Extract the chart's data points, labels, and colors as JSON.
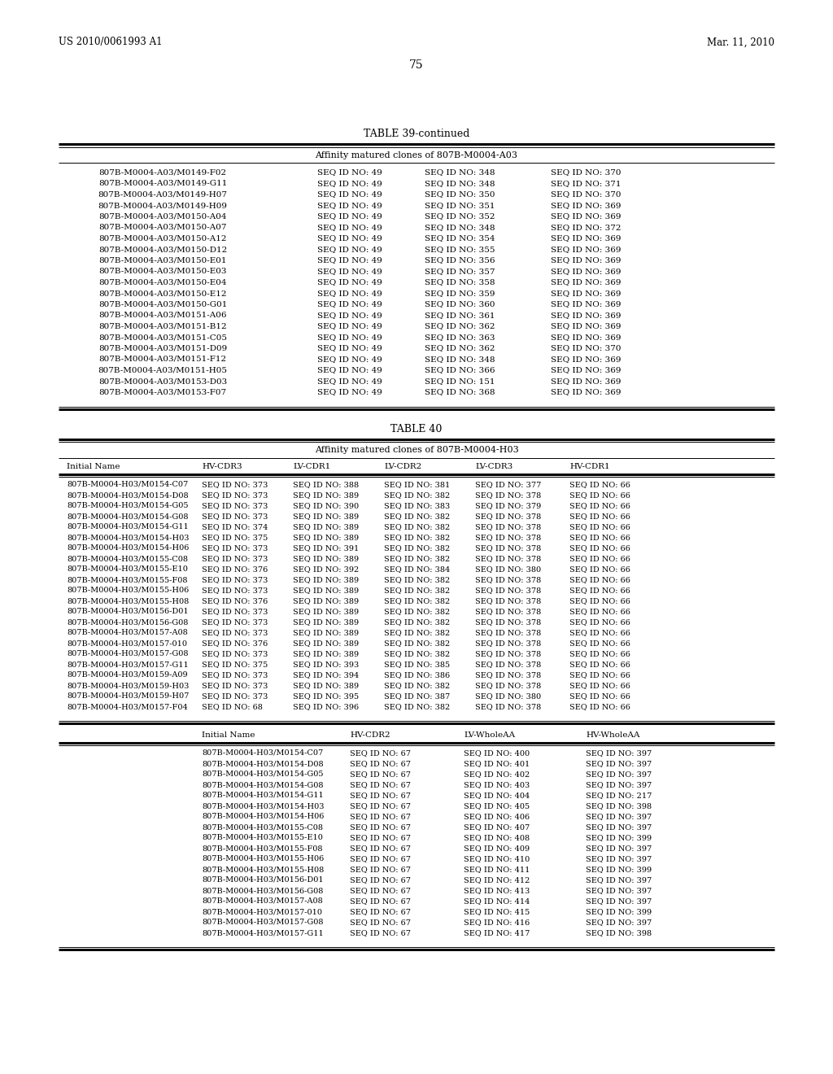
{
  "page_number": "75",
  "header_left": "US 2010/0061993 A1",
  "header_right": "Mar. 11, 2010",
  "background_color": "#ffffff",
  "table39_continued": {
    "title": "TABLE 39-continued",
    "subtitle": "Affinity matured clones of 807B-M0004-A03",
    "rows": [
      [
        "807B-M0004-A03/M0149-F02",
        "SEQ ID NO: 49",
        "SEQ ID NO: 348",
        "SEQ ID NO: 370"
      ],
      [
        "807B-M0004-A03/M0149-G11",
        "SEQ ID NO: 49",
        "SEQ ID NO: 348",
        "SEQ ID NO: 371"
      ],
      [
        "807B-M0004-A03/M0149-H07",
        "SEQ ID NO: 49",
        "SEQ ID NO: 350",
        "SEQ ID NO: 370"
      ],
      [
        "807B-M0004-A03/M0149-H09",
        "SEQ ID NO: 49",
        "SEQ ID NO: 351",
        "SEQ ID NO: 369"
      ],
      [
        "807B-M0004-A03/M0150-A04",
        "SEQ ID NO: 49",
        "SEQ ID NO: 352",
        "SEQ ID NO: 369"
      ],
      [
        "807B-M0004-A03/M0150-A07",
        "SEQ ID NO: 49",
        "SEQ ID NO: 348",
        "SEQ ID NO: 372"
      ],
      [
        "807B-M0004-A03/M0150-A12",
        "SEQ ID NO: 49",
        "SEQ ID NO: 354",
        "SEQ ID NO: 369"
      ],
      [
        "807B-M0004-A03/M0150-D12",
        "SEQ ID NO: 49",
        "SEQ ID NO: 355",
        "SEQ ID NO: 369"
      ],
      [
        "807B-M0004-A03/M0150-E01",
        "SEQ ID NO: 49",
        "SEQ ID NO: 356",
        "SEQ ID NO: 369"
      ],
      [
        "807B-M0004-A03/M0150-E03",
        "SEQ ID NO: 49",
        "SEQ ID NO: 357",
        "SEQ ID NO: 369"
      ],
      [
        "807B-M0004-A03/M0150-E04",
        "SEQ ID NO: 49",
        "SEQ ID NO: 358",
        "SEQ ID NO: 369"
      ],
      [
        "807B-M0004-A03/M0150-E12",
        "SEQ ID NO: 49",
        "SEQ ID NO: 359",
        "SEQ ID NO: 369"
      ],
      [
        "807B-M0004-A03/M0150-G01",
        "SEQ ID NO: 49",
        "SEQ ID NO: 360",
        "SEQ ID NO: 369"
      ],
      [
        "807B-M0004-A03/M0151-A06",
        "SEQ ID NO: 49",
        "SEQ ID NO: 361",
        "SEQ ID NO: 369"
      ],
      [
        "807B-M0004-A03/M0151-B12",
        "SEQ ID NO: 49",
        "SEQ ID NO: 362",
        "SEQ ID NO: 369"
      ],
      [
        "807B-M0004-A03/M0151-C05",
        "SEQ ID NO: 49",
        "SEQ ID NO: 363",
        "SEQ ID NO: 369"
      ],
      [
        "807B-M0004-A03/M0151-D09",
        "SEQ ID NO: 49",
        "SEQ ID NO: 362",
        "SEQ ID NO: 370"
      ],
      [
        "807B-M0004-A03/M0151-F12",
        "SEQ ID NO: 49",
        "SEQ ID NO: 348",
        "SEQ ID NO: 369"
      ],
      [
        "807B-M0004-A03/M0151-H05",
        "SEQ ID NO: 49",
        "SEQ ID NO: 366",
        "SEQ ID NO: 369"
      ],
      [
        "807B-M0004-A03/M0153-D03",
        "SEQ ID NO: 49",
        "SEQ ID NO: 151",
        "SEQ ID NO: 369"
      ],
      [
        "807B-M0004-A03/M0153-F07",
        "SEQ ID NO: 49",
        "SEQ ID NO: 368",
        "SEQ ID NO: 369"
      ]
    ]
  },
  "table40": {
    "title": "TABLE 40",
    "subtitle": "Affinity matured clones of 807B-M0004-H03",
    "headers1": [
      "Initial Name",
      "HV-CDR3",
      "LV-CDR1",
      "LV-CDR2",
      "LV-CDR3",
      "HV-CDR1"
    ],
    "col1_positions": [
      82,
      248,
      358,
      468,
      578,
      688
    ],
    "rows1": [
      [
        "807B-M0004-H03/M0154-C07",
        "SEQ ID NO: 373",
        "SEQ ID NO: 388",
        "SEQ ID NO: 381",
        "SEQ ID NO: 377",
        "SEQ ID NO: 66"
      ],
      [
        "807B-M0004-H03/M0154-D08",
        "SEQ ID NO: 373",
        "SEQ ID NO: 389",
        "SEQ ID NO: 382",
        "SEQ ID NO: 378",
        "SEQ ID NO: 66"
      ],
      [
        "807B-M0004-H03/M0154-G05",
        "SEQ ID NO: 373",
        "SEQ ID NO: 390",
        "SEQ ID NO: 383",
        "SEQ ID NO: 379",
        "SEQ ID NO: 66"
      ],
      [
        "807B-M0004-H03/M0154-G08",
        "SEQ ID NO: 373",
        "SEQ ID NO: 389",
        "SEQ ID NO: 382",
        "SEQ ID NO: 378",
        "SEQ ID NO: 66"
      ],
      [
        "807B-M0004-H03/M0154-G11",
        "SEQ ID NO: 374",
        "SEQ ID NO: 389",
        "SEQ ID NO: 382",
        "SEQ ID NO: 378",
        "SEQ ID NO: 66"
      ],
      [
        "807B-M0004-H03/M0154-H03",
        "SEQ ID NO: 375",
        "SEQ ID NO: 389",
        "SEQ ID NO: 382",
        "SEQ ID NO: 378",
        "SEQ ID NO: 66"
      ],
      [
        "807B-M0004-H03/M0154-H06",
        "SEQ ID NO: 373",
        "SEQ ID NO: 391",
        "SEQ ID NO: 382",
        "SEQ ID NO: 378",
        "SEQ ID NO: 66"
      ],
      [
        "807B-M0004-H03/M0155-C08",
        "SEQ ID NO: 373",
        "SEQ ID NO: 389",
        "SEQ ID NO: 382",
        "SEQ ID NO: 378",
        "SEQ ID NO: 66"
      ],
      [
        "807B-M0004-H03/M0155-E10",
        "SEQ ID NO: 376",
        "SEQ ID NO: 392",
        "SEQ ID NO: 384",
        "SEQ ID NO: 380",
        "SEQ ID NO: 66"
      ],
      [
        "807B-M0004-H03/M0155-F08",
        "SEQ ID NO: 373",
        "SEQ ID NO: 389",
        "SEQ ID NO: 382",
        "SEQ ID NO: 378",
        "SEQ ID NO: 66"
      ],
      [
        "807B-M0004-H03/M0155-H06",
        "SEQ ID NO: 373",
        "SEQ ID NO: 389",
        "SEQ ID NO: 382",
        "SEQ ID NO: 378",
        "SEQ ID NO: 66"
      ],
      [
        "807B-M0004-H03/M0155-H08",
        "SEQ ID NO: 376",
        "SEQ ID NO: 389",
        "SEQ ID NO: 382",
        "SEQ ID NO: 378",
        "SEQ ID NO: 66"
      ],
      [
        "807B-M0004-H03/M0156-D01",
        "SEQ ID NO: 373",
        "SEQ ID NO: 389",
        "SEQ ID NO: 382",
        "SEQ ID NO: 378",
        "SEQ ID NO: 66"
      ],
      [
        "807B-M0004-H03/M0156-G08",
        "SEQ ID NO: 373",
        "SEQ ID NO: 389",
        "SEQ ID NO: 382",
        "SEQ ID NO: 378",
        "SEQ ID NO: 66"
      ],
      [
        "807B-M0004-H03/M0157-A08",
        "SEQ ID NO: 373",
        "SEQ ID NO: 389",
        "SEQ ID NO: 382",
        "SEQ ID NO: 378",
        "SEQ ID NO: 66"
      ],
      [
        "807B-M0004-H03/M0157-010",
        "SEQ ID NO: 376",
        "SEQ ID NO: 389",
        "SEQ ID NO: 382",
        "SEQ ID NO: 378",
        "SEQ ID NO: 66"
      ],
      [
        "807B-M0004-H03/M0157-G08",
        "SEQ ID NO: 373",
        "SEQ ID NO: 389",
        "SEQ ID NO: 382",
        "SEQ ID NO: 378",
        "SEQ ID NO: 66"
      ],
      [
        "807B-M0004-H03/M0157-G11",
        "SEQ ID NO: 375",
        "SEQ ID NO: 393",
        "SEQ ID NO: 385",
        "SEQ ID NO: 378",
        "SEQ ID NO: 66"
      ],
      [
        "807B-M0004-H03/M0159-A09",
        "SEQ ID NO: 373",
        "SEQ ID NO: 394",
        "SEQ ID NO: 386",
        "SEQ ID NO: 378",
        "SEQ ID NO: 66"
      ],
      [
        "807B-M0004-H03/M0159-H03",
        "SEQ ID NO: 373",
        "SEQ ID NO: 389",
        "SEQ ID NO: 382",
        "SEQ ID NO: 378",
        "SEQ ID NO: 66"
      ],
      [
        "807B-M0004-H03/M0159-H07",
        "SEQ ID NO: 373",
        "SEQ ID NO: 395",
        "SEQ ID NO: 387",
        "SEQ ID NO: 380",
        "SEQ ID NO: 66"
      ],
      [
        "807B-M0004-H03/M0157-F04",
        "SEQ ID NO: 68",
        "SEQ ID NO: 396",
        "SEQ ID NO: 382",
        "SEQ ID NO: 378",
        "SEQ ID NO: 66"
      ]
    ],
    "headers2": [
      "Initial Name",
      "HV-CDR2",
      "LV-WholeAA",
      "HV-WholeAA"
    ],
    "rows2": [
      [
        "807B-M0004-H03/M0154-C07",
        "SEQ ID NO: 67",
        "SEQ ID NO: 400",
        "SEQ ID NO: 397"
      ],
      [
        "807B-M0004-H03/M0154-D08",
        "SEQ ID NO: 67",
        "SEQ ID NO: 401",
        "SEQ ID NO: 397"
      ],
      [
        "807B-M0004-H03/M0154-G05",
        "SEQ ID NO: 67",
        "SEQ ID NO: 402",
        "SEQ ID NO: 397"
      ],
      [
        "807B-M0004-H03/M0154-G08",
        "SEQ ID NO: 67",
        "SEQ ID NO: 403",
        "SEQ ID NO: 397"
      ],
      [
        "807B-M0004-H03/M0154-G11",
        "SEQ ID NO: 67",
        "SEQ ID NO: 404",
        "SEQ ID NO: 217"
      ],
      [
        "807B-M0004-H03/M0154-H03",
        "SEQ ID NO: 67",
        "SEQ ID NO: 405",
        "SEQ ID NO: 398"
      ],
      [
        "807B-M0004-H03/M0154-H06",
        "SEQ ID NO: 67",
        "SEQ ID NO: 406",
        "SEQ ID NO: 397"
      ],
      [
        "807B-M0004-H03/M0155-C08",
        "SEQ ID NO: 67",
        "SEQ ID NO: 407",
        "SEQ ID NO: 397"
      ],
      [
        "807B-M0004-H03/M0155-E10",
        "SEQ ID NO: 67",
        "SEQ ID NO: 408",
        "SEQ ID NO: 399"
      ],
      [
        "807B-M0004-H03/M0155-F08",
        "SEQ ID NO: 67",
        "SEQ ID NO: 409",
        "SEQ ID NO: 397"
      ],
      [
        "807B-M0004-H03/M0155-H06",
        "SEQ ID NO: 67",
        "SEQ ID NO: 410",
        "SEQ ID NO: 397"
      ],
      [
        "807B-M0004-H03/M0155-H08",
        "SEQ ID NO: 67",
        "SEQ ID NO: 411",
        "SEQ ID NO: 399"
      ],
      [
        "807B-M0004-H03/M0156-D01",
        "SEQ ID NO: 67",
        "SEQ ID NO: 412",
        "SEQ ID NO: 397"
      ],
      [
        "807B-M0004-H03/M0156-G08",
        "SEQ ID NO: 67",
        "SEQ ID NO: 413",
        "SEQ ID NO: 397"
      ],
      [
        "807B-M0004-H03/M0157-A08",
        "SEQ ID NO: 67",
        "SEQ ID NO: 414",
        "SEQ ID NO: 397"
      ],
      [
        "807B-M0004-H03/M0157-010",
        "SEQ ID NO: 67",
        "SEQ ID NO: 415",
        "SEQ ID NO: 399"
      ],
      [
        "807B-M0004-H03/M0157-G08",
        "SEQ ID NO: 67",
        "SEQ ID NO: 416",
        "SEQ ID NO: 397"
      ],
      [
        "807B-M0004-H03/M0157-G11",
        "SEQ ID NO: 67",
        "SEQ ID NO: 417",
        "SEQ ID NO: 398"
      ]
    ]
  }
}
